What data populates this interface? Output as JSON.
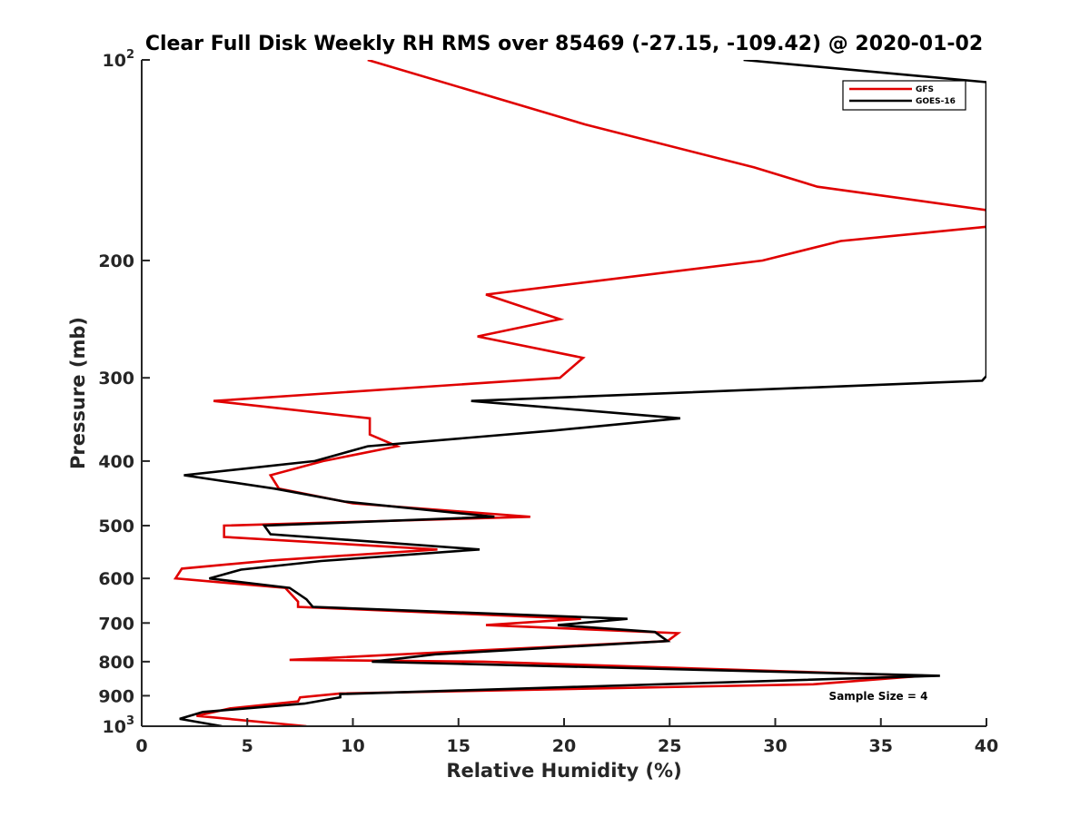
{
  "chart_data": {
    "type": "line",
    "title": "Clear Full Disk Weekly RH RMS over 85469 (-27.15, -109.42) @ 2020-01-02",
    "xlabel": "Relative Humidity (%)",
    "ylabel": "Pressure (mb)",
    "xlim": [
      0,
      40
    ],
    "ylim": [
      100,
      1000
    ],
    "y_scale": "log",
    "y_reversed": true,
    "grid": false,
    "legend_position": "top-right",
    "x_ticks": [
      "0",
      "5",
      "10",
      "15",
      "20",
      "25",
      "30",
      "35",
      "40"
    ],
    "y_ticks": [
      {
        "value": 100,
        "base": "10",
        "exp": "2"
      },
      {
        "value": 200,
        "label": "200"
      },
      {
        "value": 300,
        "label": "300"
      },
      {
        "value": 400,
        "label": "400"
      },
      {
        "value": 500,
        "label": "500"
      },
      {
        "value": 600,
        "label": "600"
      },
      {
        "value": 700,
        "label": "700"
      },
      {
        "value": 800,
        "label": "800"
      },
      {
        "value": 900,
        "label": "900"
      },
      {
        "value": 1000,
        "base": "10",
        "exp": "3"
      }
    ],
    "annotation": "Sample Size = 4",
    "series": [
      {
        "name": "GFS",
        "color": "#e00000",
        "points": [
          [
            10.7,
            100
          ],
          [
            21.0,
            125
          ],
          [
            29.0,
            145
          ],
          [
            32.0,
            155
          ],
          [
            40.0,
            168
          ],
          [
            40.0,
            178
          ],
          [
            33.1,
            187
          ],
          [
            29.4,
            200
          ],
          [
            16.3,
            225
          ],
          [
            19.8,
            245
          ],
          [
            15.9,
            260
          ],
          [
            20.9,
            280
          ],
          [
            19.8,
            300
          ],
          [
            3.4,
            325
          ],
          [
            10.8,
            345
          ],
          [
            10.8,
            365
          ],
          [
            12.1,
            380
          ],
          [
            8.6,
            400
          ],
          [
            6.1,
            420
          ],
          [
            6.5,
            440
          ],
          [
            10.0,
            463
          ],
          [
            18.4,
            485
          ],
          [
            3.9,
            500
          ],
          [
            3.9,
            520
          ],
          [
            14.0,
            543
          ],
          [
            6.1,
            564
          ],
          [
            1.9,
            580
          ],
          [
            1.6,
            600
          ],
          [
            6.8,
            620
          ],
          [
            7.4,
            650
          ],
          [
            7.4,
            662
          ],
          [
            20.8,
            690
          ],
          [
            16.3,
            705
          ],
          [
            25.4,
            725
          ],
          [
            24.9,
            745
          ],
          [
            7.0,
            795
          ],
          [
            16.2,
            800
          ],
          [
            37.0,
            840
          ],
          [
            31.8,
            865
          ],
          [
            9.4,
            893
          ],
          [
            7.5,
            905
          ],
          [
            7.4,
            918
          ],
          [
            4.2,
            940
          ],
          [
            2.6,
            965
          ],
          [
            7.8,
            1000
          ]
        ]
      },
      {
        "name": "GOES-16",
        "color": "#000000",
        "points": [
          [
            28.5,
            100
          ],
          [
            40.0,
            108
          ],
          [
            40.0,
            298
          ],
          [
            39.8,
            303
          ],
          [
            15.6,
            325
          ],
          [
            25.5,
            345
          ],
          [
            19.5,
            360
          ],
          [
            10.7,
            380
          ],
          [
            8.2,
            400
          ],
          [
            2.0,
            420
          ],
          [
            6.3,
            440
          ],
          [
            9.6,
            460
          ],
          [
            16.7,
            485
          ],
          [
            5.8,
            500
          ],
          [
            6.1,
            515
          ],
          [
            16.0,
            543
          ],
          [
            8.5,
            565
          ],
          [
            4.7,
            582
          ],
          [
            3.2,
            600
          ],
          [
            7.0,
            620
          ],
          [
            7.8,
            645
          ],
          [
            8.1,
            662
          ],
          [
            23.0,
            690
          ],
          [
            19.7,
            705
          ],
          [
            24.3,
            722
          ],
          [
            24.9,
            745
          ],
          [
            13.9,
            780
          ],
          [
            10.9,
            800
          ],
          [
            37.8,
            840
          ],
          [
            9.4,
            895
          ],
          [
            9.4,
            905
          ],
          [
            7.7,
            925
          ],
          [
            2.9,
            952
          ],
          [
            1.8,
            975
          ],
          [
            3.8,
            1000
          ]
        ]
      }
    ]
  }
}
